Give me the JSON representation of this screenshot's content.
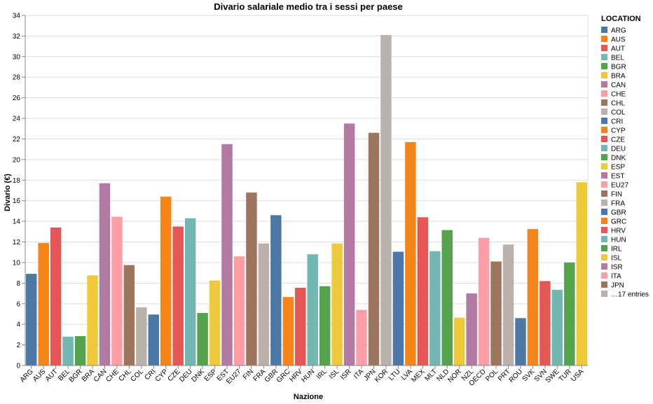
{
  "chart_data": {
    "type": "bar",
    "title": "Divario salariale medio tra i sessi per paese",
    "xlabel": "Nazione",
    "ylabel": "Divario (€)",
    "ylim": [
      0,
      34
    ],
    "yticks": [
      0,
      2,
      4,
      6,
      8,
      10,
      12,
      14,
      16,
      18,
      20,
      22,
      24,
      26,
      28,
      30,
      32,
      34
    ],
    "grid": true,
    "categories": [
      "ARG",
      "AUS",
      "AUT",
      "BEL",
      "BGR",
      "BRA",
      "CAN",
      "CHE",
      "CHL",
      "COL",
      "CRI",
      "CYP",
      "CZE",
      "DEU",
      "DNK",
      "ESP",
      "EST",
      "EU27",
      "FIN",
      "FRA",
      "GBR",
      "GRC",
      "HRV",
      "HUN",
      "IRL",
      "ISL",
      "ISR",
      "ITA",
      "JPN",
      "KOR",
      "LTU",
      "LVA",
      "MEX",
      "MLT",
      "NLD",
      "NOR",
      "NZL",
      "OECD",
      "POL",
      "PRT",
      "ROU",
      "SVK",
      "SVN",
      "SWE",
      "TUR",
      "USA"
    ],
    "values": [
      8.9,
      11.9,
      13.4,
      2.8,
      2.85,
      8.75,
      17.7,
      14.45,
      9.75,
      5.65,
      4.95,
      16.4,
      13.5,
      14.3,
      5.1,
      8.25,
      21.5,
      10.6,
      16.8,
      11.85,
      14.6,
      6.65,
      7.55,
      10.8,
      7.7,
      11.85,
      23.5,
      5.4,
      22.6,
      32.1,
      11.05,
      21.7,
      14.4,
      11.1,
      13.15,
      4.65,
      7.0,
      12.4,
      10.1,
      11.75,
      4.6,
      13.25,
      8.2,
      7.35,
      10.0,
      17.8
    ],
    "colors": [
      "#4c78a8",
      "#f58518",
      "#e45756",
      "#72b7b2",
      "#54a24b",
      "#eeca3b",
      "#b279a2",
      "#ff9da6",
      "#9d755d",
      "#bab0ac"
    ],
    "legend": {
      "title": "LOCATION",
      "position": "right",
      "entries": [
        "ARG",
        "AUS",
        "AUT",
        "BEL",
        "BGR",
        "BRA",
        "CAN",
        "CHE",
        "CHL",
        "COL",
        "CRI",
        "CYP",
        "CZE",
        "DEU",
        "DNK",
        "ESP",
        "EST",
        "EU27",
        "FIN",
        "FRA",
        "GBR",
        "GRC",
        "HRV",
        "HUN",
        "IRL",
        "ISL",
        "ISR",
        "ITA",
        "JPN"
      ],
      "more": "…17 entries"
    }
  }
}
